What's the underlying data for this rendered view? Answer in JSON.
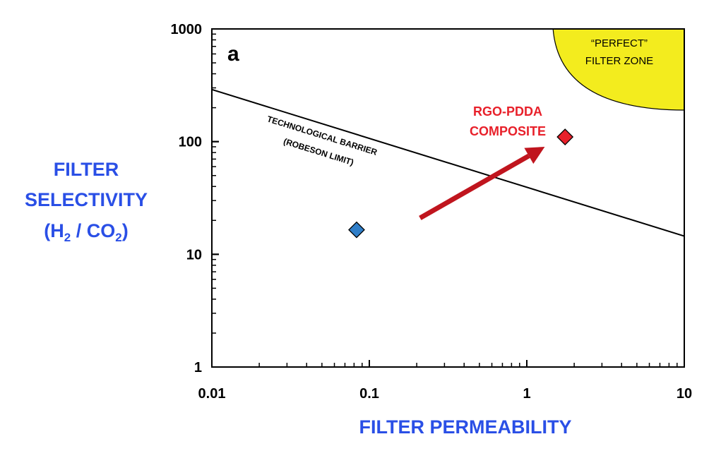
{
  "chart_data": {
    "type": "scatter",
    "panel_label": "a",
    "xlabel": "FILTER PERMEABILITY",
    "ylabel_lines": [
      "FILTER",
      "SELECTIVITY"
    ],
    "ylabel_formula": {
      "open": "(H",
      "sub1": "2",
      "mid": " / CO",
      "sub2": "2",
      "close": ")"
    },
    "x_scale": "log",
    "y_scale": "log",
    "xlim": [
      0.01,
      10
    ],
    "ylim": [
      1,
      1000
    ],
    "x_ticks": [
      {
        "value": 0.01,
        "label": "0.01"
      },
      {
        "value": 0.1,
        "label": "0.1"
      },
      {
        "value": 1,
        "label": "1"
      },
      {
        "value": 10,
        "label": "10"
      }
    ],
    "y_ticks": [
      {
        "value": 1,
        "label": "1"
      },
      {
        "value": 10,
        "label": "10"
      },
      {
        "value": 100,
        "label": "100"
      },
      {
        "value": 1000,
        "label": "1000"
      }
    ],
    "grid": false,
    "points": [
      {
        "x": 0.083,
        "y": 16.5,
        "color": "#2f7ec8",
        "marker": "diamond"
      },
      {
        "x": 1.75,
        "y": 110,
        "color": "#e8202a",
        "marker": "diamond"
      }
    ],
    "composite_label_lines": [
      "RGO-PDDA",
      "COMPOSITE"
    ],
    "composite_label_color": "#e8202a",
    "robeson_limit": {
      "label_lines": [
        "TECHNOLOGICAL BARRIER",
        "(ROBESON LIMIT)"
      ],
      "start": {
        "x": 0.01,
        "y": 290
      },
      "end": {
        "x": 10,
        "y": 14.5
      },
      "color": "#000000"
    },
    "arrow": {
      "from": {
        "x": 0.21,
        "y": 21
      },
      "to": {
        "x": 1.3,
        "y": 90
      },
      "color": "#c0151e"
    },
    "perfect_zone": {
      "label_lines": [
        "“PERFECT”",
        "FILTER ZONE"
      ],
      "color": "#f3ec1e"
    },
    "axis_title_color": "#2a4fe6"
  }
}
